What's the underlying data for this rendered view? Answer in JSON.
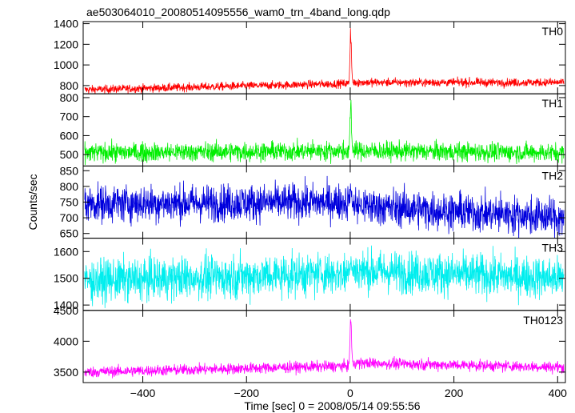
{
  "title": "ae503064010_20080514095556_wam0_trn_4band_long.qdp",
  "chart_data": {
    "type": "line",
    "title": "ae503064010_20080514095556_wam0_trn_4band_long.qdp",
    "xlabel": "Time [sec] 0 = 2008/05/14 09:55:56",
    "ylabel": "Counts/sec",
    "xlim": [
      -515,
      415
    ],
    "x_ticks": [
      -400,
      -200,
      0,
      200,
      400
    ],
    "x_tick_labels": [
      "−400",
      "−200",
      "0",
      "200",
      "400"
    ],
    "grid": false,
    "panels": [
      {
        "name": "TH0",
        "color": "#ff0000",
        "ylim": [
          720,
          1420
        ],
        "y_ticks": [
          800,
          1000,
          1200,
          1400
        ],
        "y_tick_labels": [
          "800",
          "1000",
          "1200",
          "1400"
        ],
        "baseline_pre": [
          760,
          820
        ],
        "baseline_post": [
          830,
          830
        ],
        "noise": 20,
        "peak": 1420
      },
      {
        "name": "TH1",
        "color": "#00ee00",
        "ylim": [
          440,
          820
        ],
        "y_ticks": [
          500,
          600,
          700,
          800
        ],
        "y_tick_labels": [
          "500",
          "600",
          "700",
          "800"
        ],
        "baseline_pre": [
          510,
          520
        ],
        "baseline_post": [
          520,
          510
        ],
        "noise": 25,
        "peak": 810
      },
      {
        "name": "TH2",
        "color": "#0000dd",
        "ylim": [
          635,
          865
        ],
        "y_ticks": [
          650,
          700,
          750,
          800,
          850
        ],
        "y_tick_labels": [
          "650",
          "700",
          "750",
          "800",
          "850"
        ],
        "baseline_pre": [
          745,
          750
        ],
        "baseline_post": [
          740,
          700
        ],
        "noise": 30,
        "peak": 800
      },
      {
        "name": "TH3",
        "color": "#00eeee",
        "ylim": [
          1380,
          1650
        ],
        "y_ticks": [
          1400,
          1500,
          1600
        ],
        "y_tick_labels": [
          "1400",
          "1500",
          "1600"
        ],
        "baseline_pre": [
          1490,
          1520
        ],
        "baseline_post": [
          1530,
          1500
        ],
        "noise": 40,
        "peak": 1580
      },
      {
        "name": "TH0123",
        "color": "#ff00ff",
        "ylim": [
          3330,
          4500
        ],
        "y_ticks": [
          3500,
          4000,
          4500
        ],
        "y_tick_labels": [
          "3500",
          "4000",
          "4500"
        ],
        "baseline_pre": [
          3500,
          3600
        ],
        "baseline_post": [
          3650,
          3580
        ],
        "noise": 45,
        "peak": 4500
      }
    ]
  }
}
